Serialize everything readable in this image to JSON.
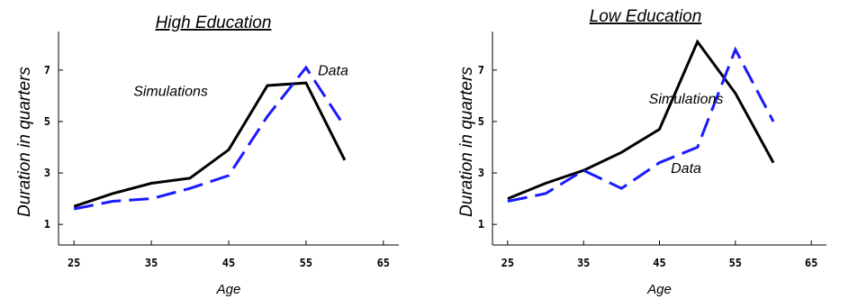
{
  "chart_data": [
    {
      "type": "line",
      "title": "High Education",
      "xlabel": "Age",
      "ylabel": "Duration in quarters",
      "xticks": [
        25,
        35,
        45,
        55,
        65
      ],
      "yticks": [
        1,
        3,
        5,
        7
      ],
      "xlim": [
        23,
        67
      ],
      "ylim": [
        0.2,
        8.5
      ],
      "grid": false,
      "series": [
        {
          "name": "Simulations",
          "color": "#000000",
          "dashed": false,
          "x": [
            25,
            30,
            35,
            40,
            45,
            50,
            55,
            60
          ],
          "y": [
            1.7,
            2.2,
            2.6,
            2.8,
            3.9,
            6.4,
            6.5,
            3.5
          ]
        },
        {
          "name": "Data",
          "color": "#1a1aff",
          "dashed": true,
          "x": [
            25,
            30,
            35,
            40,
            45,
            50,
            55,
            60
          ],
          "y": [
            1.6,
            1.9,
            2.0,
            2.4,
            2.9,
            5.2,
            7.1,
            4.8
          ]
        }
      ],
      "annotations": [
        {
          "text": "Simulations",
          "x": 37.5,
          "y": 6.0
        },
        {
          "text": "Data",
          "x": 58.5,
          "y": 6.8
        }
      ]
    },
    {
      "type": "line",
      "title": "Low Education",
      "xlabel": "Age",
      "ylabel": "Duration in quarters",
      "xticks": [
        25,
        35,
        45,
        55,
        65
      ],
      "yticks": [
        1,
        3,
        5,
        7
      ],
      "xlim": [
        23,
        67
      ],
      "ylim": [
        0.2,
        8.5
      ],
      "grid": false,
      "series": [
        {
          "name": "Simulations",
          "color": "#000000",
          "dashed": false,
          "x": [
            25,
            30,
            35,
            40,
            45,
            50,
            55,
            60
          ],
          "y": [
            2.0,
            2.6,
            3.1,
            3.8,
            4.7,
            8.1,
            6.1,
            3.4
          ]
        },
        {
          "name": "Data",
          "color": "#1a1aff",
          "dashed": true,
          "x": [
            25,
            30,
            35,
            40,
            45,
            50,
            55,
            60
          ],
          "y": [
            1.9,
            2.2,
            3.1,
            2.4,
            3.4,
            4.0,
            7.8,
            5.0
          ]
        }
      ],
      "annotations": [
        {
          "text": "Simulations",
          "x": 48.5,
          "y": 5.7
        },
        {
          "text": "Data",
          "x": 48.5,
          "y": 3.0
        }
      ]
    }
  ]
}
